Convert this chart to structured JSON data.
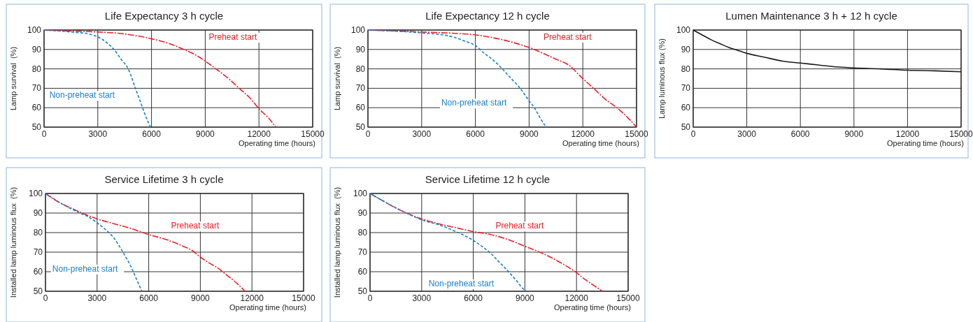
{
  "chart_data": [
    {
      "type": "line",
      "title": "Life Expectancy 3 h cycle",
      "xlabel": "Operating time (hours)",
      "ylabel": "Lamp survival  (%)",
      "xlim": [
        0,
        15000
      ],
      "xticks": [
        0,
        3000,
        6000,
        9000,
        12000,
        15000
      ],
      "ylim": [
        50,
        100
      ],
      "yticks": [
        50,
        60,
        70,
        80,
        90,
        100
      ],
      "grid": true,
      "series": [
        {
          "name": "Preheat start",
          "color": "#e8202a",
          "line_style": "dashed",
          "x": [
            0,
            1500,
            3000,
            4500,
            6000,
            7000,
            7800,
            8500,
            9000,
            9600,
            10300,
            10900,
            11500,
            12000,
            12500,
            12950
          ],
          "values": [
            100,
            99.5,
            99,
            98,
            95.5,
            93,
            90,
            87,
            84,
            80,
            75,
            70,
            65,
            59.5,
            55,
            50
          ]
        },
        {
          "name": "Non-preheat start",
          "color": "#1a7fc7",
          "line_style": "dotted",
          "x": [
            0,
            1500,
            2500,
            3000,
            3500,
            3900,
            4300,
            4700,
            5100,
            5500,
            5700,
            5950
          ],
          "values": [
            100,
            99,
            98,
            96.5,
            93.5,
            90,
            85,
            80,
            70,
            60,
            55,
            50
          ]
        }
      ]
    },
    {
      "type": "line",
      "title": "Life Expectancy 12 h cycle",
      "xlabel": "Operating time (hours)",
      "ylabel": "Lamp survival  (%)",
      "xlim": [
        0,
        15000
      ],
      "xticks": [
        0,
        3000,
        6000,
        9000,
        12000,
        15000
      ],
      "ylim": [
        50,
        100
      ],
      "yticks": [
        50,
        60,
        70,
        80,
        90,
        100
      ],
      "grid": true,
      "series": [
        {
          "name": "Preheat start",
          "color": "#e8202a",
          "line_style": "dashed",
          "x": [
            0,
            3000,
            6000,
            7500,
            9000,
            10500,
            11200,
            12000,
            12600,
            13300,
            13900,
            14500,
            15000
          ],
          "values": [
            100,
            99,
            97.5,
            95,
            91,
            85,
            82,
            75,
            70,
            64,
            60,
            55,
            50
          ]
        },
        {
          "name": "Non-preheat start",
          "color": "#1a7fc7",
          "line_style": "dotted",
          "x": [
            0,
            3000,
            4500,
            5500,
            6000,
            6500,
            7000,
            7500,
            8000,
            8500,
            9000,
            9300,
            9600,
            9950
          ],
          "values": [
            100,
            98.5,
            97,
            94,
            92,
            88,
            84.5,
            80,
            75,
            70,
            63.5,
            60,
            55,
            50
          ]
        }
      ]
    },
    {
      "type": "line",
      "title": "Lumen Maintenance 3 h + 12 h cycle",
      "xlabel": "Operating time (hours)",
      "ylabel": "Lamp luminous flux (%)",
      "xlim": [
        0,
        15000
      ],
      "xticks": [
        0,
        3000,
        6000,
        9000,
        12000,
        15000
      ],
      "ylim": [
        50,
        100
      ],
      "yticks": [
        50,
        60,
        70,
        80,
        90,
        100
      ],
      "grid": true,
      "series": [
        {
          "color": "#1a1a1a",
          "line_style": "solid",
          "x": [
            0,
            500,
            1000,
            1500,
            2000,
            2500,
            3000,
            4000,
            5000,
            6000,
            7000,
            8000,
            9000,
            10500,
            12000,
            13500,
            15000
          ],
          "values": [
            100,
            97.5,
            95,
            93,
            91,
            89.5,
            88,
            86,
            84,
            83,
            82,
            81,
            80.5,
            80,
            79.3,
            79,
            78.5
          ]
        }
      ]
    },
    {
      "type": "line",
      "title": "Service Lifetime 3 h cycle",
      "xlabel": "Operating time (hours)",
      "ylabel": "Installed lamp luminous flux  (%)",
      "xlim": [
        0,
        15000
      ],
      "xticks": [
        0,
        3000,
        6000,
        9000,
        12000,
        15000
      ],
      "ylim": [
        50,
        100
      ],
      "yticks": [
        50,
        60,
        70,
        80,
        90,
        100
      ],
      "grid": true,
      "series": [
        {
          "name": "Preheat start",
          "color": "#e8202a",
          "line_style": "dashed",
          "x": [
            0,
            500,
            1000,
            1500,
            2000,
            3000,
            4000,
            5000,
            6000,
            7000,
            8000,
            8500,
            9000,
            9500,
            10000,
            10500,
            11000,
            11600
          ],
          "values": [
            100,
            97,
            94.5,
            92.5,
            90.5,
            87,
            84.5,
            82,
            79,
            76.5,
            73,
            71,
            67.5,
            64.5,
            62,
            58.5,
            55,
            50
          ]
        },
        {
          "name": "Non-preheat start",
          "color": "#1a7fc7",
          "line_style": "dotted",
          "x": [
            0,
            1000,
            2000,
            2500,
            3000,
            3500,
            4000,
            4500,
            5000,
            5300,
            5600
          ],
          "values": [
            100,
            94.5,
            90,
            88,
            85,
            81.5,
            77,
            70,
            62,
            56,
            50
          ]
        }
      ]
    },
    {
      "type": "line",
      "title": "Service Lifetime 12 h cycle",
      "xlabel": "Operating time (hours)",
      "ylabel": "Installed lamp luminous flux  (%)",
      "xlim": [
        0,
        15000
      ],
      "xticks": [
        0,
        3000,
        6000,
        9000,
        12000,
        15000
      ],
      "ylim": [
        50,
        100
      ],
      "yticks": [
        50,
        60,
        70,
        80,
        90,
        100
      ],
      "grid": true,
      "series": [
        {
          "name": "Preheat start",
          "color": "#e8202a",
          "line_style": "dashed",
          "x": [
            0,
            500,
            1000,
            1500,
            2000,
            3000,
            4000,
            5000,
            6000,
            7000,
            8000,
            9000,
            10000,
            11000,
            12000,
            12500,
            13000,
            13500
          ],
          "values": [
            100,
            97.5,
            95,
            92.5,
            90.5,
            87,
            84.5,
            82.5,
            80.5,
            79,
            76.5,
            73,
            69.5,
            65,
            59.5,
            56,
            53,
            50
          ]
        },
        {
          "name": "Non-preheat start",
          "color": "#1a7fc7",
          "line_style": "dotted",
          "x": [
            0,
            1000,
            2000,
            3000,
            4000,
            5000,
            6000,
            6500,
            7000,
            7500,
            8000,
            8500,
            9000,
            9100
          ],
          "values": [
            100,
            95,
            90.5,
            86.5,
            84,
            80.5,
            76,
            73,
            69.5,
            65,
            60.5,
            55.5,
            50.5,
            50
          ]
        }
      ]
    }
  ]
}
